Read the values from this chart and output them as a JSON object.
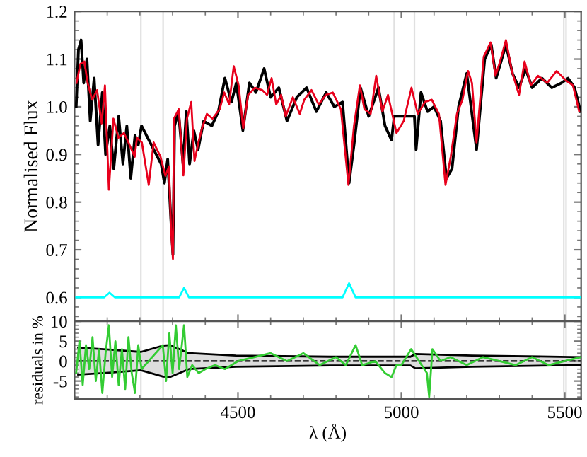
{
  "chart_data": [
    {
      "type": "line",
      "ylabel": "Normalised Flux",
      "xlim": [
        4000,
        5550
      ],
      "xticks": [
        4500,
        5000,
        5500
      ],
      "ylim": [
        0.55,
        1.2
      ],
      "yticks": [
        {
          "value": 0.6,
          "label": "0.6"
        },
        {
          "value": 0.7,
          "label": "0.7"
        },
        {
          "value": 0.8,
          "label": "0.8"
        },
        {
          "value": 0.9,
          "label": "0.9"
        },
        {
          "value": 1.0,
          "label": "1.0"
        },
        {
          "value": 1.1,
          "label": "1.1"
        },
        {
          "value": 1.2,
          "label": "1.2"
        }
      ],
      "tick_labels": "y",
      "grid": false,
      "legend": false,
      "line_style": "solid",
      "marker": "none",
      "ref_lines": [
        {
          "axis": "x",
          "value": 4203,
          "color": "#e0e0e0"
        },
        {
          "axis": "x",
          "value": 4271,
          "color": "#e0e0e0"
        },
        {
          "axis": "x",
          "value": 4978,
          "color": "#e0e0e0"
        },
        {
          "axis": "x",
          "value": 5040,
          "color": "#e0e0e0"
        },
        {
          "axis": "x",
          "value": 5497,
          "color": "#e0e0e0"
        },
        {
          "axis": "x",
          "value": 5504,
          "color": "#e0e0e0"
        }
      ],
      "series": [
        {
          "color": "#000000",
          "x": [
            4005,
            4012,
            4020,
            4028,
            4038,
            4048,
            4060,
            4072,
            4085,
            4095,
            4108,
            4120,
            4135,
            4148,
            4160,
            4172,
            4185,
            4195,
            4205,
            4265,
            4275,
            4285,
            4295,
            4301,
            4306,
            4318,
            4332,
            4342,
            4352,
            4365,
            4378,
            4395,
            4420,
            4440,
            4460,
            4480,
            4495,
            4515,
            4535,
            4555,
            4580,
            4600,
            4625,
            4650,
            4680,
            4710,
            4740,
            4770,
            4795,
            4820,
            4840,
            4855,
            4875,
            4900,
            4930,
            4950,
            4970,
            4978,
            5040,
            5045,
            5060,
            5080,
            5100,
            5120,
            5138,
            5155,
            5175,
            5200,
            5230,
            5255,
            5275,
            5290,
            5320,
            5340,
            5360,
            5380,
            5400,
            5430,
            5460,
            5490,
            5510,
            5530,
            5548
          ],
          "values": [
            1.0,
            1.12,
            1.14,
            1.05,
            1.1,
            0.97,
            1.06,
            0.92,
            1.03,
            0.9,
            0.96,
            0.87,
            0.98,
            0.88,
            0.96,
            0.85,
            0.94,
            0.92,
            0.96,
            0.88,
            0.84,
            0.89,
            0.76,
            0.69,
            0.96,
            0.99,
            0.88,
            0.99,
            0.88,
            0.95,
            0.91,
            0.97,
            0.96,
            0.99,
            1.06,
            1.01,
            1.05,
            0.95,
            1.05,
            1.03,
            1.08,
            1.02,
            1.04,
            0.97,
            1.02,
            1.04,
            0.99,
            1.03,
            1.0,
            1.01,
            0.84,
            0.92,
            1.04,
            0.98,
            1.04,
            0.96,
            0.93,
            0.98,
            0.98,
            0.91,
            1.03,
            0.99,
            1.0,
            0.97,
            0.85,
            0.87,
            1.0,
            1.07,
            0.91,
            1.1,
            1.13,
            1.06,
            1.13,
            1.07,
            1.04,
            1.08,
            1.04,
            1.06,
            1.04,
            1.05,
            1.06,
            1.04,
            0.99
          ]
        },
        {
          "color": "#e8001c",
          "x": [
            4006,
            4018,
            4030,
            4040,
            4054,
            4069,
            4083,
            4093,
            4105,
            4119,
            4134,
            4151,
            4165,
            4184,
            4191,
            4206,
            4227,
            4242,
            4263,
            4278,
            4289,
            4295,
            4301,
            4304,
            4319,
            4333,
            4344,
            4357,
            4367,
            4379,
            4390,
            4405,
            4422,
            4444,
            4458,
            4473,
            4487,
            4502,
            4516,
            4531,
            4552,
            4574,
            4589,
            4603,
            4617,
            4632,
            4646,
            4668,
            4689,
            4703,
            4725,
            4747,
            4769,
            4790,
            4815,
            4838,
            4855,
            4873,
            4887,
            4906,
            4923,
            4942,
            4959,
            4985,
            5007,
            5031,
            5050,
            5072,
            5093,
            5115,
            5135,
            5151,
            5170,
            5187,
            5204,
            5216,
            5230,
            5252,
            5273,
            5288,
            5302,
            5320,
            5338,
            5360,
            5377,
            5396,
            5418,
            5446,
            5475,
            5504,
            5525,
            5544
          ],
          "values": [
            1.05,
            1.09,
            1.095,
            1.05,
            1.015,
            1.035,
            0.965,
            1.045,
            0.826,
            0.975,
            0.935,
            0.945,
            0.925,
            0.895,
            0.935,
            0.925,
            0.836,
            0.925,
            0.895,
            0.855,
            0.875,
            0.745,
            0.681,
            0.975,
            0.995,
            0.856,
            0.975,
            1.01,
            0.886,
            0.925,
            0.955,
            0.985,
            0.975,
            0.995,
            1.03,
            1.005,
            1.085,
            1.045,
            0.955,
            1.025,
            1.04,
            1.035,
            1.025,
            1.06,
            1.005,
            1.025,
            0.98,
            1.02,
            0.985,
            1.015,
            1.035,
            1.005,
            1.025,
            1.03,
            0.995,
            0.836,
            0.96,
            1.045,
            0.995,
            0.985,
            1.065,
            0.99,
            1.025,
            0.945,
            0.97,
            1.04,
            0.985,
            1.01,
            1.015,
            0.985,
            0.836,
            0.895,
            0.985,
            1.015,
            1.075,
            1.05,
            0.925,
            1.105,
            1.135,
            1.065,
            1.095,
            1.14,
            1.075,
            1.025,
            1.095,
            1.045,
            1.065,
            1.05,
            1.075,
            1.055,
            1.045,
            0.99
          ]
        },
        {
          "color": "#00ffff",
          "x": [
            4005,
            4090,
            4107,
            4124,
            4320,
            4335,
            4350,
            4820,
            4840,
            4860,
            5550
          ],
          "values": [
            0.6,
            0.6,
            0.61,
            0.6,
            0.6,
            0.62,
            0.6,
            0.6,
            0.63,
            0.6,
            0.6
          ]
        }
      ]
    },
    {
      "type": "line",
      "ylabel": "residuals in %",
      "xlabel": "λ (Å)",
      "xlim": [
        4000,
        5550
      ],
      "xticks": [
        4500,
        5000,
        5500
      ],
      "ylim": [
        -9.5,
        10
      ],
      "yticks": [
        -5,
        0,
        5,
        10
      ],
      "grid": false,
      "legend": false,
      "marker": "none",
      "ref_lines": [
        {
          "axis": "x",
          "value": 4203,
          "color": "#e0e0e0"
        },
        {
          "axis": "x",
          "value": 4271,
          "color": "#e0e0e0"
        },
        {
          "axis": "x",
          "value": 4978,
          "color": "#e0e0e0"
        },
        {
          "axis": "x",
          "value": 5040,
          "color": "#e0e0e0"
        },
        {
          "axis": "x",
          "value": 5497,
          "color": "#e0e0e0"
        },
        {
          "axis": "x",
          "value": 5504,
          "color": "#e0e0e0"
        }
      ],
      "series": [
        {
          "color": "#000000",
          "line_style": "dashed",
          "x": [
            4011,
            4105,
            4203,
            4271,
            4292,
            4350,
            4494,
            4783,
            5028,
            5043,
            5216,
            5548
          ],
          "values": [
            0,
            0,
            0,
            0,
            0,
            0,
            0,
            0,
            0,
            0,
            0,
            0
          ],
          "lower": [
            -3.4,
            -2.9,
            -2.3,
            -3.9,
            -4,
            -2.0,
            -1.4,
            -1.1,
            -1.1,
            -1.8,
            -1.4,
            -1.0
          ],
          "upper": [
            3.4,
            2.9,
            2.3,
            3.9,
            4,
            2.0,
            1.4,
            1.1,
            1.1,
            1.8,
            1.4,
            1.0
          ]
        },
        {
          "color": "#000000",
          "line_style": "solid",
          "x": [
            4011,
            4105,
            4203,
            4271,
            4292,
            4350,
            4494,
            4783,
            5028,
            5043,
            5216,
            5548
          ],
          "values": [
            3.4,
            2.9,
            2.3,
            3.9,
            4,
            2.0,
            1.4,
            1.1,
            1.1,
            1.8,
            1.4,
            1.0
          ]
        },
        {
          "color": "#000000",
          "line_style": "solid",
          "x": [
            4011,
            4105,
            4203,
            4271,
            4292,
            4350,
            4494,
            4783,
            5028,
            5043,
            5216,
            5548
          ],
          "values": [
            -3.4,
            -2.9,
            -2.3,
            -3.9,
            -4,
            -2.0,
            -1.4,
            -1.1,
            -1.1,
            -1.8,
            -1.4,
            -1.0
          ]
        },
        {
          "color": "#33cc33",
          "line_style": "solid",
          "x": [
            4005,
            4015,
            4025,
            4035,
            4045,
            4055,
            4065,
            4075,
            4085,
            4095,
            4105,
            4115,
            4125,
            4135,
            4145,
            4155,
            4165,
            4175,
            4185,
            4195,
            4205,
            4270,
            4280,
            4290,
            4300,
            4310,
            4320,
            4335,
            4345,
            4360,
            4380,
            4400,
            4430,
            4460,
            4500,
            4550,
            4600,
            4650,
            4700,
            4750,
            4800,
            4830,
            4860,
            4880,
            4920,
            4950,
            4970,
            4985,
            5000,
            5030,
            5078,
            5085,
            5095,
            5120,
            5150,
            5200,
            5250,
            5300,
            5350,
            5400,
            5450,
            5500,
            5548
          ],
          "values": [
            -3,
            5,
            -6,
            4,
            -2,
            6,
            -5,
            3,
            -8,
            2,
            9,
            -4,
            5,
            -6,
            3,
            -7,
            6,
            -3,
            -8,
            4,
            -2,
            4,
            -5,
            7,
            -3,
            9,
            -2,
            9,
            -4,
            -1,
            -3,
            -2,
            -1,
            -2,
            0,
            1,
            2,
            0,
            2,
            -1,
            1,
            -1,
            4,
            -1,
            0,
            -3,
            -4,
            -1,
            -1,
            3,
            -3,
            -9,
            3,
            0,
            1,
            -1,
            1,
            0,
            -1,
            1,
            -1,
            0,
            1
          ]
        }
      ]
    }
  ]
}
